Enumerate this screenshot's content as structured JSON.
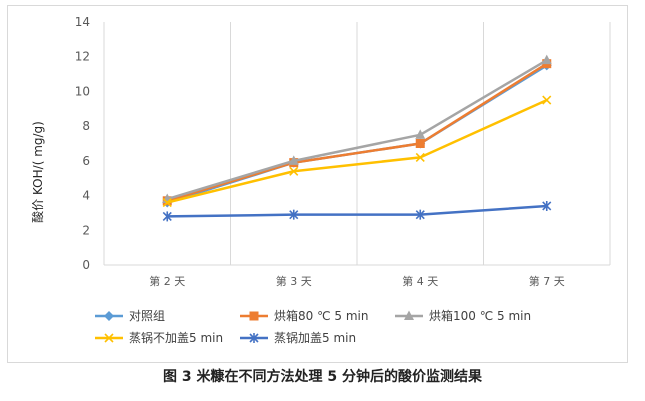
{
  "caption": "图 3  米糠在不同方法处理 5 分钟后的酸价监测结果",
  "chart_data": {
    "type": "line",
    "categories": [
      "第 2 天",
      "第 3 天",
      "第 4 天",
      "第 7 天"
    ],
    "ylabel": "酸价 KOH/( mg/g)",
    "xlabel": "",
    "ylim": [
      0,
      14
    ],
    "yticks": [
      0,
      2,
      4,
      6,
      8,
      10,
      12,
      14
    ],
    "grid": "vertical",
    "legend_position": "bottom",
    "series": [
      {
        "name": "对照组",
        "values": [
          3.6,
          5.9,
          7.0,
          11.5
        ],
        "color": "#5b9bd5",
        "marker": "diamond"
      },
      {
        "name": "烘箱80 ℃ 5 min",
        "values": [
          3.7,
          5.9,
          7.0,
          11.6
        ],
        "color": "#ed7d31",
        "marker": "square"
      },
      {
        "name": "烘箱100 ℃ 5 min",
        "values": [
          3.8,
          6.0,
          7.5,
          11.8
        ],
        "color": "#a5a5a5",
        "marker": "triangle"
      },
      {
        "name": "蒸锅不加盖5 min",
        "values": [
          3.6,
          5.4,
          6.2,
          9.5
        ],
        "color": "#ffc000",
        "marker": "x"
      },
      {
        "name": "蒸锅加盖5 min",
        "values": [
          2.8,
          2.9,
          2.9,
          3.4
        ],
        "color": "#4472c4",
        "marker": "star"
      }
    ]
  }
}
